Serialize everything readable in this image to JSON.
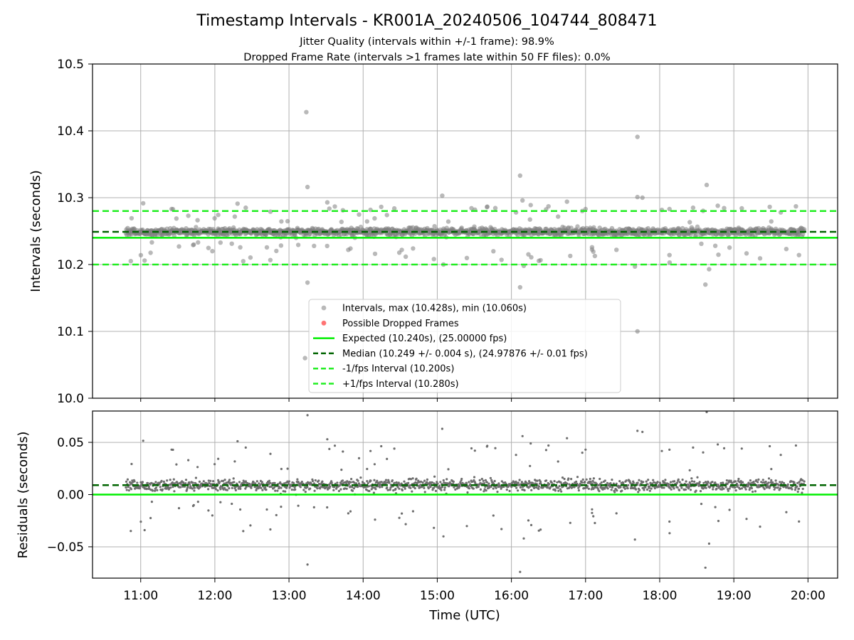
{
  "figure": {
    "title": "Timestamp Intervals - KR001A_20240506_104744_808471",
    "subtitle_1": "Jitter Quality (intervals within +/-1 frame): 98.9%",
    "subtitle_2": "Dropped Frame Rate (intervals >1 frames late within 50 FF files): 0.0%"
  },
  "colors": {
    "points": "#808080",
    "dropped": "#ff0000",
    "expected": "#00ee00",
    "median": "#006400",
    "bound": "#22ee22",
    "grid": "#b0b0b0"
  },
  "chart_data": [
    {
      "type": "scatter",
      "ylabel": "Intervals (seconds)",
      "xlim_hours": [
        10.35,
        20.4
      ],
      "ylim": [
        10.0,
        10.5
      ],
      "yticks": [
        "10.0",
        "10.1",
        "10.2",
        "10.3",
        "10.4",
        "10.5"
      ],
      "xticks": [
        "11:00",
        "12:00",
        "13:00",
        "14:00",
        "15:00",
        "16:00",
        "17:00",
        "18:00",
        "19:00",
        "20:00"
      ],
      "grid": true,
      "legend_position": "lower-center",
      "data_range_hours": [
        10.8,
        19.95
      ],
      "reference_lines": {
        "expected": 10.24,
        "median": 10.249,
        "minus_1_fps": 10.2,
        "plus_1_fps": 10.28
      },
      "legend": [
        "Intervals, max (10.428s), min (10.060s)",
        "Possible Dropped Frames",
        "Expected (10.240s), (25.00000 fps)",
        "Median (10.249 +/- 0.004 s), (24.97876 +/- 0.01 fps)",
        "-1/fps Interval (10.200s)",
        "+1/fps Interval (10.280s)"
      ],
      "outliers": [
        {
          "x": "13:14",
          "y": 10.428
        },
        {
          "x": "13:15",
          "y": 10.316
        },
        {
          "x": "13:15",
          "y": 10.173
        },
        {
          "x": "13:13",
          "y": 10.06
        },
        {
          "x": "13:31",
          "y": 10.293
        },
        {
          "x": "15:04",
          "y": 10.303
        },
        {
          "x": "16:07",
          "y": 10.333
        },
        {
          "x": "16:09",
          "y": 10.296
        },
        {
          "x": "16:07",
          "y": 10.166
        },
        {
          "x": "16:10",
          "y": 10.198
        },
        {
          "x": "17:42",
          "y": 10.391
        },
        {
          "x": "17:42",
          "y": 10.301
        },
        {
          "x": "17:46",
          "y": 10.3
        },
        {
          "x": "17:42",
          "y": 10.1
        },
        {
          "x": "18:38",
          "y": 10.319
        },
        {
          "x": "18:37",
          "y": 10.17
        },
        {
          "x": "18:40",
          "y": 10.193
        },
        {
          "x": "11:25",
          "y": 10.283
        },
        {
          "x": "12:25",
          "y": 10.285
        },
        {
          "x": "11:58",
          "y": 10.22
        },
        {
          "x": "12:23",
          "y": 10.205
        },
        {
          "x": "13:48",
          "y": 10.222
        },
        {
          "x": "15:05",
          "y": 10.2
        },
        {
          "x": "15:52",
          "y": 10.207
        },
        {
          "x": "16:30",
          "y": 10.287
        },
        {
          "x": "16:45",
          "y": 10.294
        },
        {
          "x": "17:00",
          "y": 10.283
        },
        {
          "x": "17:25",
          "y": 10.222
        },
        {
          "x": "17:40",
          "y": 10.197
        },
        {
          "x": "18:08",
          "y": 10.203
        },
        {
          "x": "18:27",
          "y": 10.285
        },
        {
          "x": "18:47",
          "y": 10.288
        },
        {
          "x": "18:45",
          "y": 10.228
        },
        {
          "x": "19:38",
          "y": 10.278
        },
        {
          "x": "11:31",
          "y": 10.227
        },
        {
          "x": "12:45",
          "y": 10.279
        }
      ]
    },
    {
      "type": "scatter",
      "xlabel": "Time (UTC)",
      "ylabel": "Residuals (seconds)",
      "xlim_hours": [
        10.35,
        20.4
      ],
      "ylim": [
        -0.08,
        0.08
      ],
      "yticks": [
        "0.05",
        "0.00",
        "−0.05"
      ],
      "xticks": [
        "11:00",
        "12:00",
        "13:00",
        "14:00",
        "15:00",
        "16:00",
        "17:00",
        "18:00",
        "19:00",
        "20:00"
      ],
      "grid": true,
      "reference_lines": {
        "zero": 0.0,
        "median": 0.009
      }
    }
  ]
}
